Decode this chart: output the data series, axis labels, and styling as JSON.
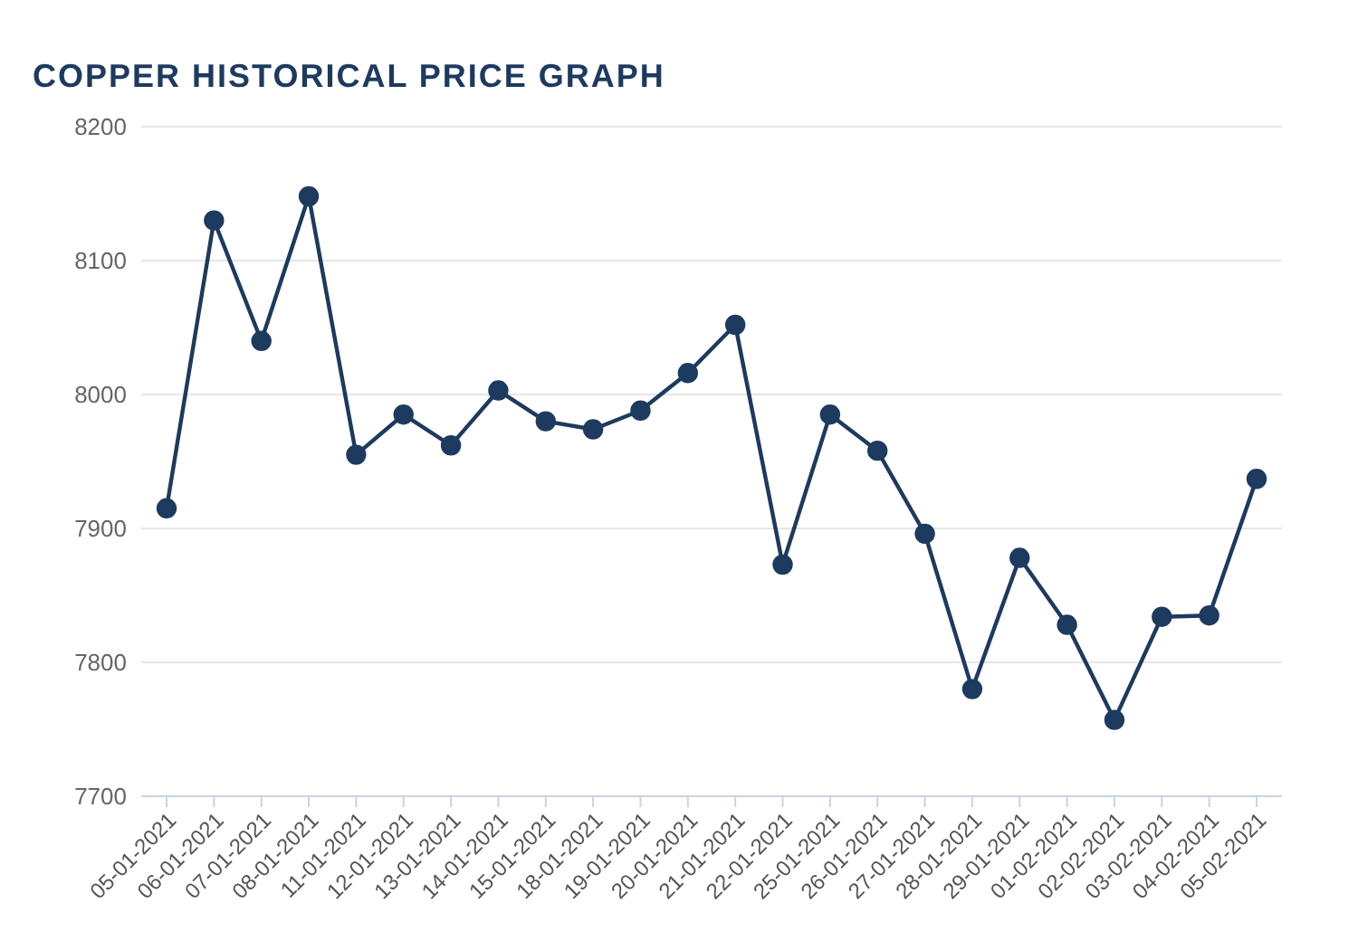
{
  "chart_data": {
    "type": "line",
    "title": "COPPER HISTORICAL PRICE GRAPH",
    "categories": [
      "05-01-2021",
      "06-01-2021",
      "07-01-2021",
      "08-01-2021",
      "11-01-2021",
      "12-01-2021",
      "13-01-2021",
      "14-01-2021",
      "15-01-2021",
      "18-01-2021",
      "19-01-2021",
      "20-01-2021",
      "21-01-2021",
      "22-01-2021",
      "25-01-2021",
      "26-01-2021",
      "27-01-2021",
      "28-01-2021",
      "29-01-2021",
      "01-02-2021",
      "02-02-2021",
      "03-02-2021",
      "04-02-2021",
      "05-02-2021"
    ],
    "series": [
      {
        "color": "#1d3a5f",
        "values": [
          7915,
          8130,
          8040,
          8148,
          7955,
          7985,
          7962,
          8003,
          7980,
          7974,
          7988,
          8016,
          8052,
          7873,
          7985,
          7958,
          7896,
          7780,
          7878,
          7828,
          7757,
          7834,
          7835,
          7937
        ]
      }
    ],
    "ylim": [
      7700,
      8200
    ],
    "yticks": [
      7700,
      7800,
      7900,
      8000,
      8100,
      8200
    ],
    "grid": "y",
    "marker": "circle",
    "line_style": "solid",
    "legend": false
  }
}
